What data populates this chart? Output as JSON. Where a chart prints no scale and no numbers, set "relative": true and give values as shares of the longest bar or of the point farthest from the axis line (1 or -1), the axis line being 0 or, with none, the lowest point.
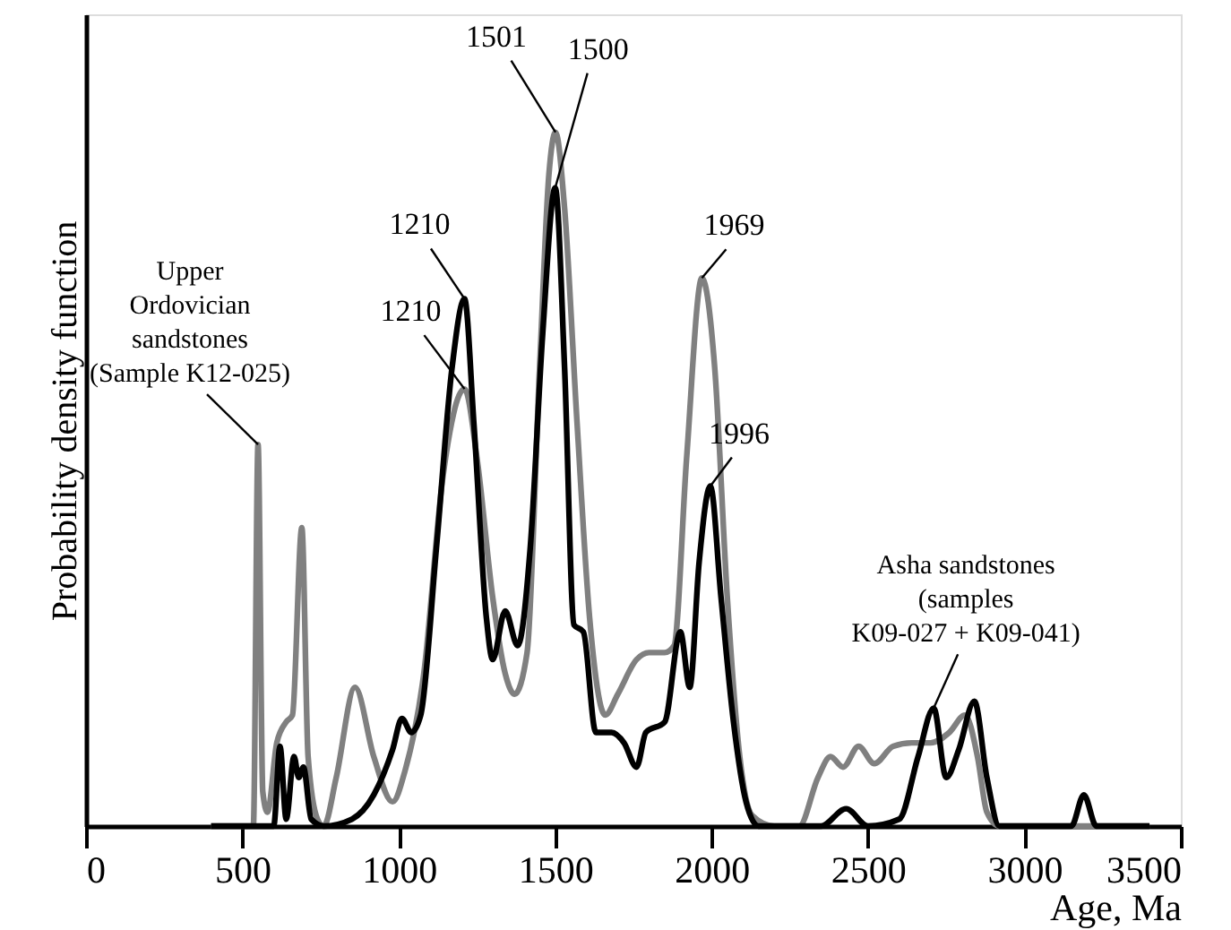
{
  "chart_data": {
    "type": "line",
    "xlabel": "Age, Ma",
    "ylabel": "Probability density function",
    "relative": true,
    "xlim": [
      0,
      3500
    ],
    "xticks": [
      0,
      500,
      1000,
      1500,
      2000,
      2500,
      3000,
      3500
    ],
    "grid": false,
    "marker": "none",
    "line_style": "solid",
    "series": [
      {
        "color": "#808080",
        "x": [
          400,
          535,
          550,
          565,
          580,
          610,
          640,
          660,
          690,
          710,
          740,
          760,
          800,
          860,
          920,
          980,
          1020,
          1080,
          1140,
          1210,
          1250,
          1300,
          1340,
          1370,
          1410,
          1450,
          1480,
          1501,
          1530,
          1570,
          1610,
          1660,
          1700,
          1760,
          1800,
          1850,
          1880,
          1920,
          1969,
          2010,
          2050,
          2090,
          2130,
          2200,
          2280,
          2340,
          2380,
          2420,
          2470,
          2520,
          2580,
          2640,
          2700,
          2760,
          2810,
          2850,
          2880,
          2920,
          3400
        ],
        "values": [
          0,
          0,
          0.55,
          0.05,
          0.02,
          0.12,
          0.15,
          0.16,
          0.43,
          0.1,
          0.01,
          0,
          0.07,
          0.2,
          0.1,
          0.035,
          0.08,
          0.22,
          0.5,
          0.63,
          0.53,
          0.33,
          0.22,
          0.19,
          0.25,
          0.66,
          0.94,
          1.0,
          0.89,
          0.58,
          0.3,
          0.16,
          0.19,
          0.24,
          0.25,
          0.25,
          0.26,
          0.53,
          0.79,
          0.66,
          0.33,
          0.1,
          0.015,
          0,
          0,
          0.07,
          0.1,
          0.085,
          0.115,
          0.09,
          0.115,
          0.12,
          0.12,
          0.135,
          0.16,
          0.1,
          0.02,
          0,
          0
        ]
      },
      {
        "color": "#000000",
        "x": [
          400,
          600,
          620,
          640,
          665,
          680,
          695,
          720,
          760,
          850,
          920,
          980,
          1010,
          1040,
          1070,
          1120,
          1170,
          1210,
          1240,
          1280,
          1300,
          1340,
          1380,
          1420,
          1460,
          1500,
          1530,
          1560,
          1590,
          1630,
          1680,
          1720,
          1760,
          1790,
          1850,
          1900,
          1930,
          1960,
          1996,
          2030,
          2070,
          2110,
          2150,
          2350,
          2430,
          2500,
          2600,
          2660,
          2710,
          2750,
          2790,
          2840,
          2880,
          2920,
          3150,
          3190,
          3230,
          3400
        ],
        "values": [
          0,
          0,
          0.115,
          0.01,
          0.1,
          0.07,
          0.085,
          0.01,
          0,
          0.01,
          0.045,
          0.11,
          0.155,
          0.135,
          0.16,
          0.4,
          0.66,
          0.76,
          0.58,
          0.3,
          0.24,
          0.31,
          0.26,
          0.4,
          0.71,
          0.92,
          0.66,
          0.29,
          0.28,
          0.135,
          0.135,
          0.12,
          0.085,
          0.135,
          0.15,
          0.28,
          0.2,
          0.38,
          0.49,
          0.33,
          0.15,
          0.035,
          0,
          0,
          0.025,
          0,
          0.01,
          0.1,
          0.17,
          0.07,
          0.11,
          0.18,
          0.07,
          0,
          0,
          0.045,
          0,
          0
        ]
      }
    ],
    "annotations": [
      {
        "text": "1501",
        "x": 1501,
        "y": 1.0
      },
      {
        "text": "1500",
        "x": 1500,
        "y": 0.92
      },
      {
        "text": "1210",
        "x": 1210,
        "y": 0.63
      },
      {
        "text": "1210",
        "x": 1210,
        "y": 0.76
      },
      {
        "text": "1969",
        "x": 1969,
        "y": 0.79
      },
      {
        "text": "1996",
        "x": 1996,
        "y": 0.49
      },
      {
        "text": "Upper\nOrdovician\nsandstones\n(Sample K12-025)",
        "x": 550,
        "y": 0.55
      },
      {
        "text": "Asha sandstones\n(samples\nK09-027 + K09-041)",
        "x": 2710,
        "y": 0.17
      }
    ]
  }
}
